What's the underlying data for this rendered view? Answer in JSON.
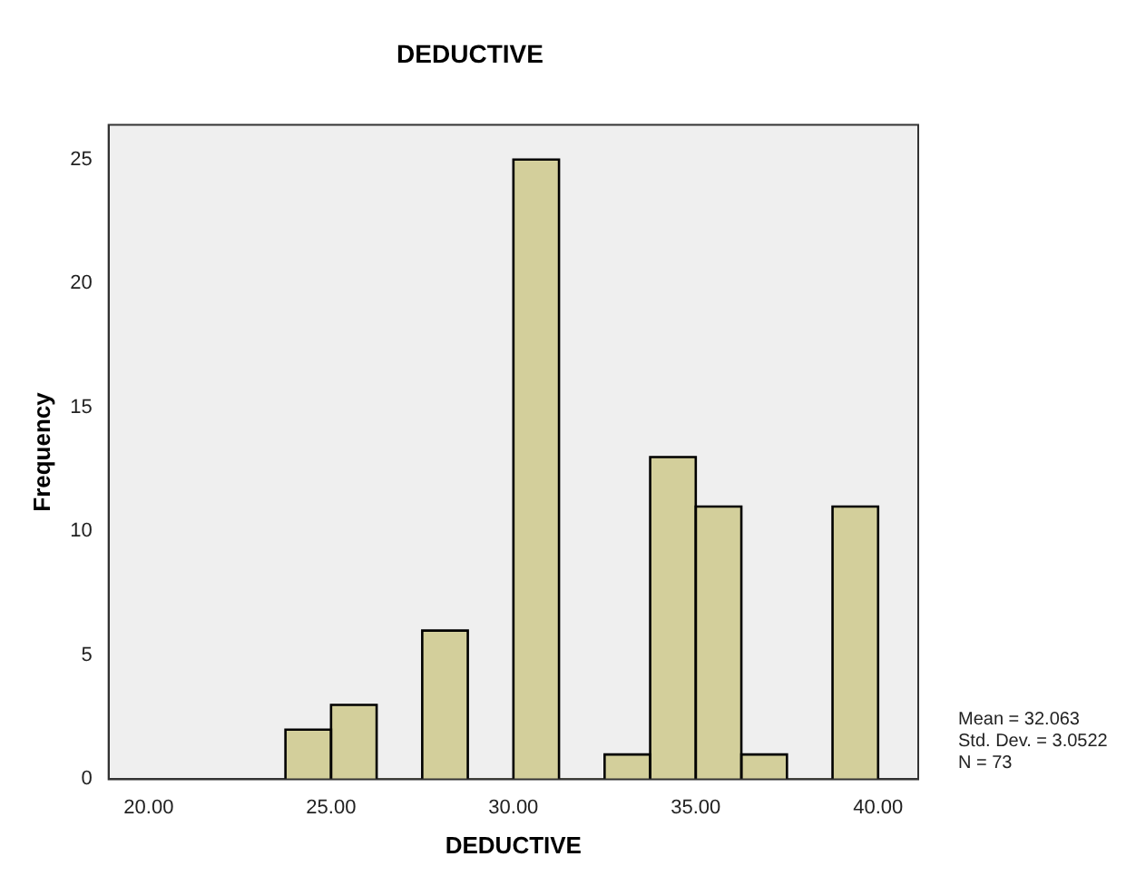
{
  "chart_data": {
    "type": "histogram",
    "title": "DEDUCTIVE",
    "xlabel": "DEDUCTIVE",
    "ylabel": "Frequency",
    "bins": [
      23.75,
      25,
      26.25,
      27.5,
      28.75,
      30,
      31.25,
      32.5,
      33.75,
      35,
      36.25,
      37.5,
      38.75,
      40
    ],
    "values": [
      2,
      3,
      0,
      6,
      0,
      25,
      0,
      1,
      13,
      11,
      1,
      0,
      11
    ],
    "color": "#d3cf9b",
    "xlim": [
      18.9,
      41.1
    ],
    "xticks": [
      {
        "value": 20,
        "label": "20.00"
      },
      {
        "value": 25,
        "label": "25.00"
      },
      {
        "value": 30,
        "label": "30.00"
      },
      {
        "value": 35,
        "label": "35.00"
      },
      {
        "value": 40,
        "label": "40.00"
      }
    ],
    "ylim": [
      0,
      26.4
    ],
    "yticks": [
      0,
      5,
      10,
      15,
      20,
      25
    ],
    "grid": false,
    "legend": false,
    "annotations": [
      "Mean = 32.063",
      "Std. Dev. = 3.0522",
      "N = 73"
    ]
  }
}
